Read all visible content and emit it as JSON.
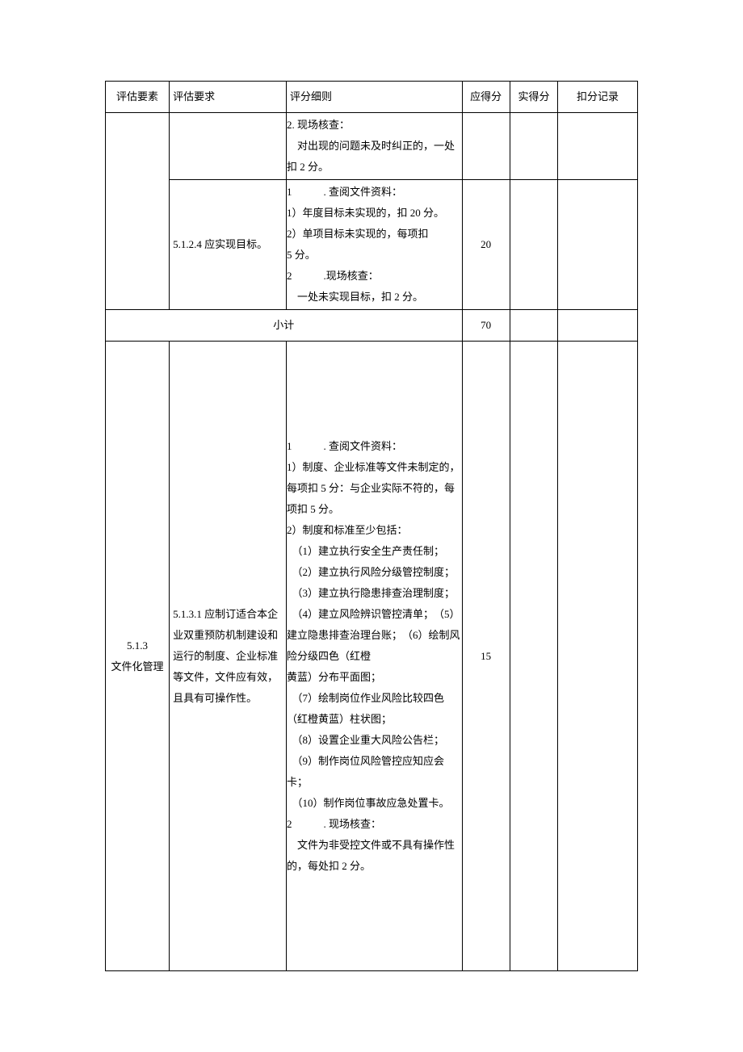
{
  "headers": {
    "element": "评估要素",
    "requirement": "评估要求",
    "rules": "评分细则",
    "max_score": "应得分",
    "actual_score": "实得分",
    "deduction_record": "扣分记录"
  },
  "rows": [
    {
      "element": "",
      "requirement": "",
      "rules": "2. 现场核查：\n　对出现的问题未及时纠正的，一处扣 2 分。",
      "max_score": "",
      "actual_score": "",
      "deduction_record": ""
    },
    {
      "element": "",
      "requirement": "5.1.2.4 应实现目标。",
      "rules": "1　　　. 查阅文件资料：\n1）年度目标未实现的，扣 20 分。\n2）单项目标未实现的，每项扣\n5 分。\n2　　　.现场核查：\n　一处未实现目标，扣 2 分。",
      "max_score": "20",
      "actual_score": "",
      "deduction_record": ""
    },
    {
      "subtotal_label": "小计",
      "max_score": "70",
      "actual_score": "",
      "deduction_record": ""
    },
    {
      "element": "5.1.3\n文件化管理",
      "requirement": "5.1.3.1 应制订适合本企业双重预防机制建设和运行的制度、企业标准等文件，文件应有效，且具有可操作性。",
      "rules": "1　　　. 查阅文件资料：\n1）制度、企业标准等文件未制定的，每项扣 5 分：与企业实际不符的，每项扣 5 分。\n2）制度和标准至少包括：\n　（1）建立执行安全生产责任制；\n　（2）建立执行风险分级管控制度；\n　（3）建立执行隐患排查治理制度；\n　（4）建立风险辨识管控清单；　（5）建立隐患排查治理台账；　（6）绘制风险分级四色（红橙\n黄蓝）分布平面图；\n　（7）绘制岗位作业风险比较四色（红橙黄蓝）柱状图；\n　（8）设置企业重大风险公告栏；\n　（9）制作岗位风险管控应知应会卡；\n　（10）制作岗位事故应急处置卡。\n2　　　. 现场核查：\n　文件为非受控文件或不具有操作性的，每处扣 2 分。",
      "max_score": "15",
      "actual_score": "",
      "deduction_record": ""
    }
  ],
  "styling": {
    "font_family": "SimSun",
    "font_size_pt": 10,
    "border_color": "#000000",
    "background_color": "#ffffff",
    "text_color": "#000000",
    "line_height": 2.0
  }
}
